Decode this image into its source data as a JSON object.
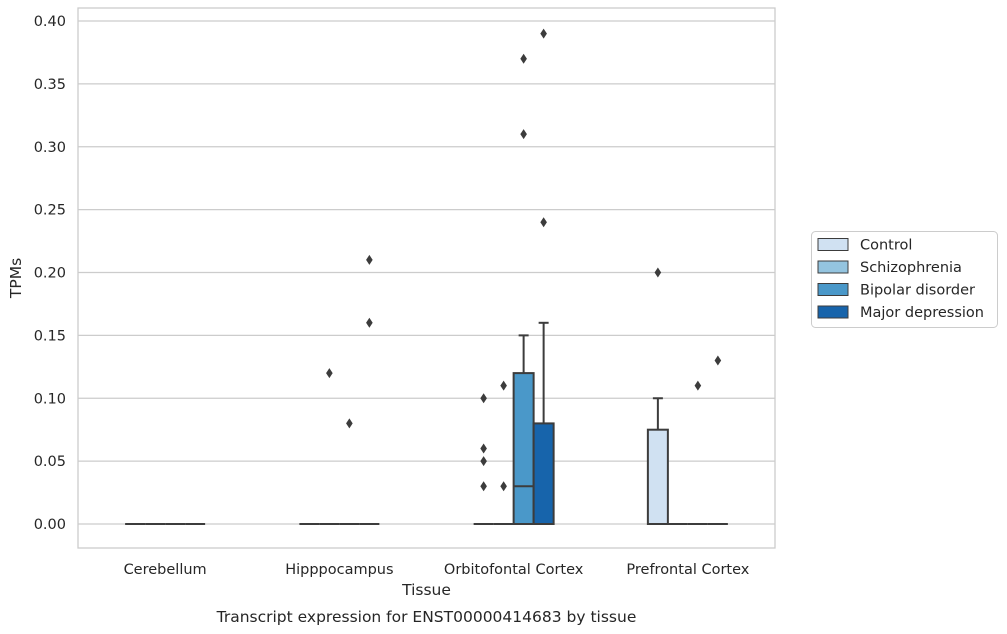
{
  "chart_data": {
    "type": "box",
    "title": "Transcript expression for ENST00000414683 by tissue",
    "xlabel": "Tissue",
    "ylabel": "TPMs",
    "ylim": [
      -0.018,
      0.41
    ],
    "yticks": [
      "0.00",
      "0.05",
      "0.10",
      "0.15",
      "0.20",
      "0.25",
      "0.30",
      "0.35",
      "0.40"
    ],
    "grid": true,
    "legend_position": "right",
    "categories": [
      "Cerebellum",
      "Hipppocampus",
      "Orbitofontal Cortex",
      "Prefrontal Cortex"
    ],
    "series": [
      {
        "name": "Control",
        "color": "#d0e1f2",
        "boxes": [
          {
            "q1": 0,
            "median": 0,
            "q3": 0,
            "whisker_low": 0,
            "whisker_high": 0,
            "outliers": []
          },
          {
            "q1": 0,
            "median": 0,
            "q3": 0,
            "whisker_low": 0,
            "whisker_high": 0,
            "outliers": []
          },
          {
            "q1": 0,
            "median": 0,
            "q3": 0,
            "whisker_low": 0,
            "whisker_high": 0,
            "outliers": [
              0.03,
              0.05,
              0.06,
              0.1
            ]
          },
          {
            "q1": 0,
            "median": 0,
            "q3": 0.075,
            "whisker_low": 0,
            "whisker_high": 0.1,
            "outliers": [
              0.2
            ]
          }
        ]
      },
      {
        "name": "Schizophrenia",
        "color": "#94c4df",
        "boxes": [
          {
            "q1": 0,
            "median": 0,
            "q3": 0,
            "whisker_low": 0,
            "whisker_high": 0,
            "outliers": []
          },
          {
            "q1": 0,
            "median": 0,
            "q3": 0,
            "whisker_low": 0,
            "whisker_high": 0,
            "outliers": [
              0.12
            ]
          },
          {
            "q1": 0,
            "median": 0,
            "q3": 0,
            "whisker_low": 0,
            "whisker_high": 0,
            "outliers": [
              0.03,
              0.11
            ]
          },
          {
            "q1": 0,
            "median": 0,
            "q3": 0,
            "whisker_low": 0,
            "whisker_high": 0,
            "outliers": []
          }
        ]
      },
      {
        "name": "Bipolar disorder",
        "color": "#4a98c9",
        "boxes": [
          {
            "q1": 0,
            "median": 0,
            "q3": 0,
            "whisker_low": 0,
            "whisker_high": 0,
            "outliers": []
          },
          {
            "q1": 0,
            "median": 0,
            "q3": 0,
            "whisker_low": 0,
            "whisker_high": 0,
            "outliers": [
              0.08
            ]
          },
          {
            "q1": 0,
            "median": 0.03,
            "q3": 0.12,
            "whisker_low": 0,
            "whisker_high": 0.15,
            "outliers": [
              0.31,
              0.37
            ]
          },
          {
            "q1": 0,
            "median": 0,
            "q3": 0,
            "whisker_low": 0,
            "whisker_high": 0,
            "outliers": [
              0.11
            ]
          }
        ]
      },
      {
        "name": "Major depression",
        "color": "#1764ab",
        "boxes": [
          {
            "q1": 0,
            "median": 0,
            "q3": 0,
            "whisker_low": 0,
            "whisker_high": 0,
            "outliers": []
          },
          {
            "q1": 0,
            "median": 0,
            "q3": 0,
            "whisker_low": 0,
            "whisker_high": 0,
            "outliers": [
              0.16,
              0.21
            ]
          },
          {
            "q1": 0,
            "median": 0,
            "q3": 0.08,
            "whisker_low": 0,
            "whisker_high": 0.16,
            "outliers": [
              0.24,
              0.39
            ]
          },
          {
            "q1": 0,
            "median": 0,
            "q3": 0,
            "whisker_low": 0,
            "whisker_high": 0,
            "outliers": [
              0.13
            ]
          }
        ]
      }
    ]
  }
}
